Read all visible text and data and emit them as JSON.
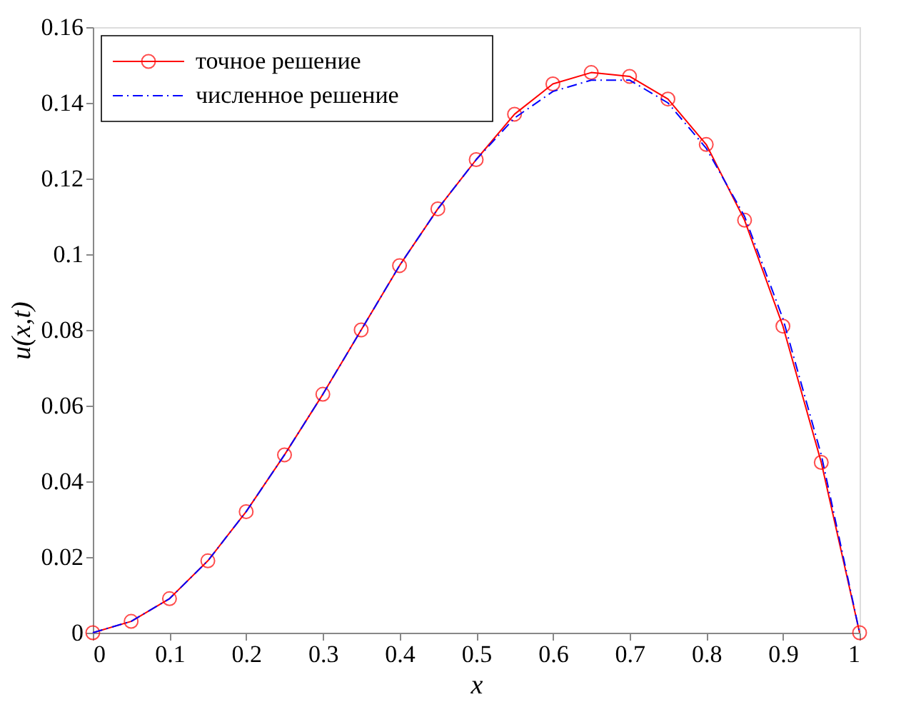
{
  "chart_data": {
    "type": "line",
    "xlabel": "x",
    "ylabel": "u(x,t)",
    "x": [
      0,
      0.05,
      0.1,
      0.15,
      0.2,
      0.25,
      0.3,
      0.35,
      0.4,
      0.45,
      0.5,
      0.55,
      0.6,
      0.65,
      0.7,
      0.75,
      0.8,
      0.85,
      0.9,
      0.95,
      1
    ],
    "series": [
      {
        "name": "точное решение",
        "color": "#ff0000",
        "marker": "circle",
        "line_style": "solid",
        "values": [
          0,
          0.003,
          0.009,
          0.019,
          0.032,
          0.047,
          0.063,
          0.08,
          0.097,
          0.112,
          0.125,
          0.137,
          0.145,
          0.148,
          0.147,
          0.141,
          0.129,
          0.109,
          0.081,
          0.045,
          0
        ]
      },
      {
        "name": "численное решение",
        "color": "#0000ff",
        "marker": "none",
        "line_style": "dashed",
        "values": [
          0,
          0.003,
          0.009,
          0.019,
          0.032,
          0.047,
          0.063,
          0.08,
          0.097,
          0.112,
          0.125,
          0.136,
          0.143,
          0.146,
          0.146,
          0.14,
          0.128,
          0.11,
          0.083,
          0.047,
          0
        ]
      }
    ],
    "xlim": [
      0,
      1
    ],
    "xticks": [
      0,
      0.1,
      0.2,
      0.3,
      0.4,
      0.5,
      0.6,
      0.7,
      0.8,
      0.9,
      1
    ],
    "ylim": [
      0,
      0.16
    ],
    "yticks": [
      0,
      0.02,
      0.04,
      0.06,
      0.08,
      0.1,
      0.12,
      0.14,
      0.16
    ],
    "grid": false,
    "legend": "top left"
  }
}
